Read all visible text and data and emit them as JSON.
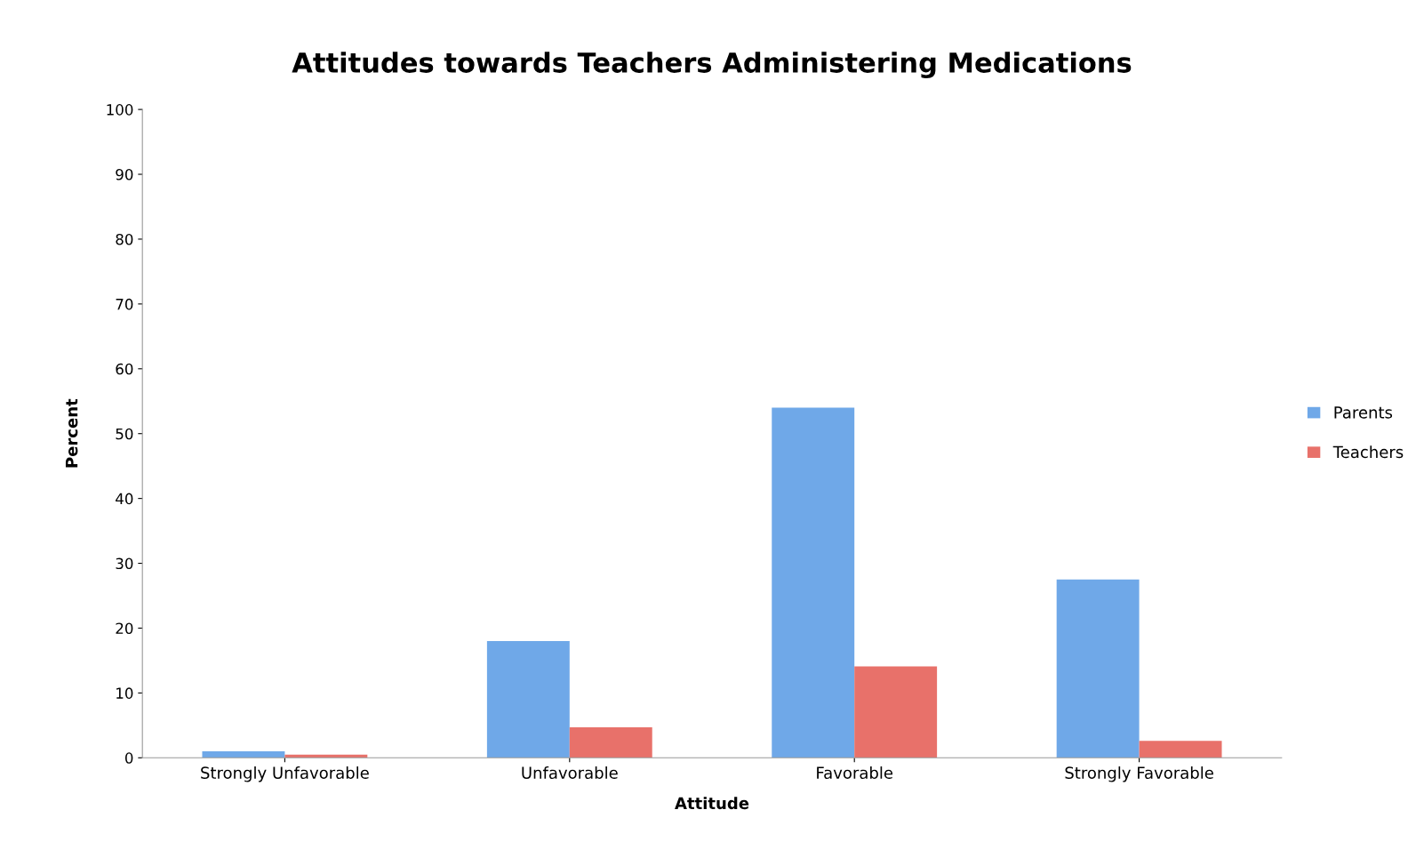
{
  "chart_data": {
    "type": "bar",
    "title": "Attitudes towards Teachers Administering Medications",
    "xlabel": "Attitude",
    "ylabel": "Percent",
    "categories": [
      "Strongly Unfavorable",
      "Unfavorable",
      "Favorable",
      "Strongly Favorable"
    ],
    "series": [
      {
        "name": "Parents",
        "color": "#6fa8e8",
        "values": [
          1,
          18,
          54,
          27.5
        ]
      },
      {
        "name": "Teachers",
        "color": "#e8716a",
        "values": [
          0.5,
          4.7,
          14.1,
          2.6
        ]
      }
    ],
    "ylim": [
      0,
      100
    ],
    "yticks": [
      0,
      10,
      20,
      30,
      40,
      50,
      60,
      70,
      80,
      90,
      100
    ],
    "grid": false,
    "legend": "right"
  }
}
